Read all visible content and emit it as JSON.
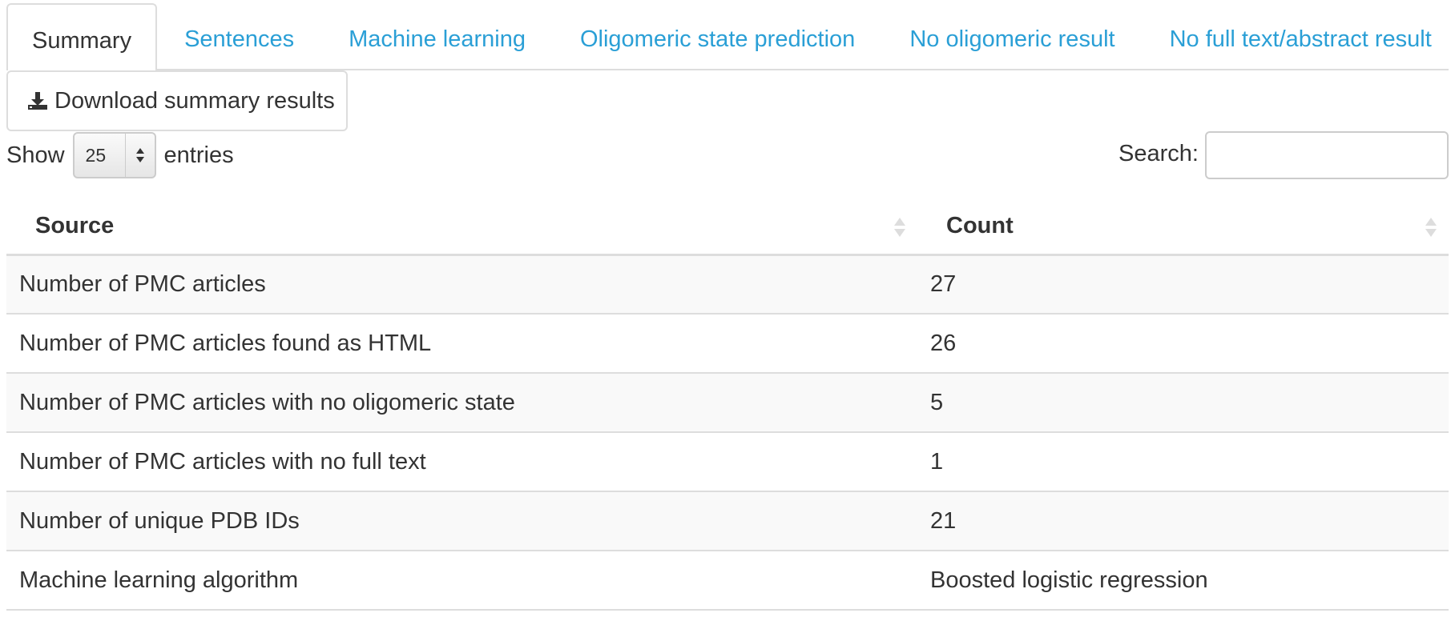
{
  "tabs": [
    {
      "label": "Summary",
      "active": true
    },
    {
      "label": "Sentences",
      "active": false
    },
    {
      "label": "Machine learning",
      "active": false
    },
    {
      "label": "Oligomeric state prediction",
      "active": false
    },
    {
      "label": "No oligomeric result",
      "active": false
    },
    {
      "label": "No full text/abstract result",
      "active": false
    }
  ],
  "download": {
    "label": "Download summary results",
    "icon": "download-icon"
  },
  "length_control": {
    "prefix": "Show",
    "value": "25",
    "suffix": "entries"
  },
  "search": {
    "label": "Search:",
    "value": ""
  },
  "table": {
    "headers": [
      "Source",
      "Count"
    ],
    "rows": [
      [
        "Number of PMC articles",
        "27"
      ],
      [
        "Number of PMC articles found as HTML",
        "26"
      ],
      [
        "Number of PMC articles with no oligomeric state",
        "5"
      ],
      [
        "Number of PMC articles with no full text",
        "1"
      ],
      [
        "Number of unique PDB IDs",
        "21"
      ],
      [
        "Machine learning algorithm",
        "Boosted logistic regression"
      ]
    ]
  },
  "colors": {
    "link": "#2a9fd6",
    "text": "#333333",
    "border": "#dddddd",
    "stripe": "#f9f9f9"
  }
}
